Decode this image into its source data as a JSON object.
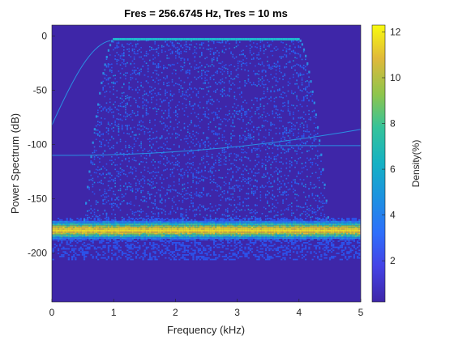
{
  "chart_data": {
    "type": "heatmap",
    "title": "Fres = 256.6745 Hz, Tres = 10 ms",
    "xlabel": "Frequency (kHz)",
    "ylabel": "Power Spectrum (dB)",
    "xlim": [
      0,
      5
    ],
    "ylim": [
      -245,
      10
    ],
    "xticks": [
      0,
      1,
      2,
      3,
      4,
      5
    ],
    "yticks": [
      0,
      -50,
      -100,
      -150,
      -200
    ],
    "colorbar": {
      "label": "Density(%)",
      "range": [
        0.2,
        12.3
      ],
      "ticks": [
        2,
        4,
        6,
        8,
        10,
        12
      ],
      "colormap": "parula"
    },
    "features": {
      "passband_khz": [
        1,
        4
      ],
      "passband_level_db": -3,
      "noise_floor_db": [
        -188,
        -170
      ],
      "noise_floor_peak_density_pct": 12,
      "spur_line_db": -101
    },
    "colors": {
      "background": "#3e26a8",
      "low": "#2a6cf0",
      "mid": "#1fbccd",
      "high": "#f9e423"
    }
  }
}
